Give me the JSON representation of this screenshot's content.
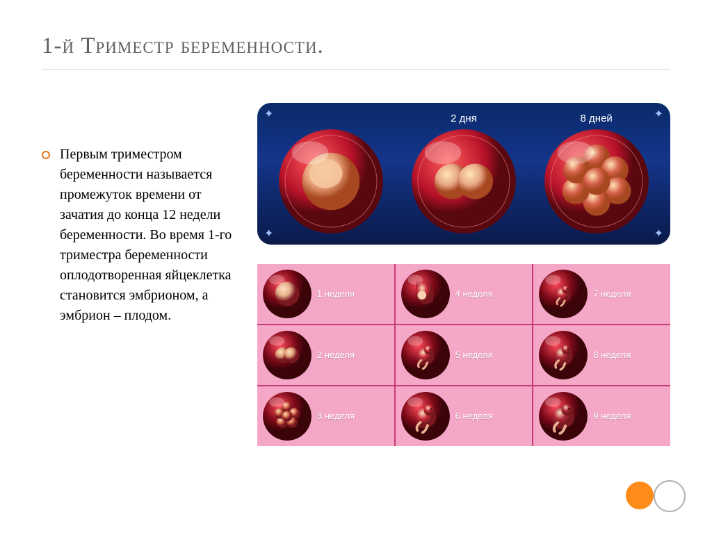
{
  "title": "1-й Триместр беременности.",
  "body_text": "Первым триместром беременности называется промежуток времени от зачатия до конца 12 недели беременности. Во время 1-го триместра беременности оплодотворенная яйцеклетка становится эмбрионом, а эмбрион – плодом.",
  "top_panel": {
    "background_gradient": [
      "#0a2a6a",
      "#14358a",
      "#0a1a4a"
    ],
    "cells": [
      {
        "label": "",
        "outer": "#b8122a",
        "inner": "#e8a07a"
      },
      {
        "label": "2 дня",
        "outer": "#b8122a",
        "inner": "#e8a888"
      },
      {
        "label": "8 дней",
        "outer": "#b8122a",
        "inner": "#d6604a"
      }
    ]
  },
  "grid": {
    "bg": "#c93a7c",
    "cell_bg": "#f5a7c8",
    "label_color": "#ffffff",
    "cells": [
      {
        "label": "1 неделя",
        "outer": "#7a0818",
        "inner": "#e8b08c"
      },
      {
        "label": "4 неделя",
        "outer": "#7a0818",
        "inner": "#c72a3a"
      },
      {
        "label": "7 неделя",
        "outer": "#7a0818",
        "inner": "#c72a3a"
      },
      {
        "label": "2 неделя",
        "outer": "#7a0818",
        "inner": "#e0a078"
      },
      {
        "label": "5 неделя",
        "outer": "#7a0818",
        "inner": "#c72a3a"
      },
      {
        "label": "8 неделя",
        "outer": "#7a0818",
        "inner": "#b0283a"
      },
      {
        "label": "3 неделя",
        "outer": "#7a0818",
        "inner": "#d6684a"
      },
      {
        "label": "6 неделя",
        "outer": "#7a0818",
        "inner": "#c72a3a"
      },
      {
        "label": "9 неделя",
        "outer": "#7a0818",
        "inner": "#b0283a"
      }
    ]
  },
  "accent": {
    "bullet_border": "#e67817",
    "dot_orange": "#ff8c1a"
  }
}
